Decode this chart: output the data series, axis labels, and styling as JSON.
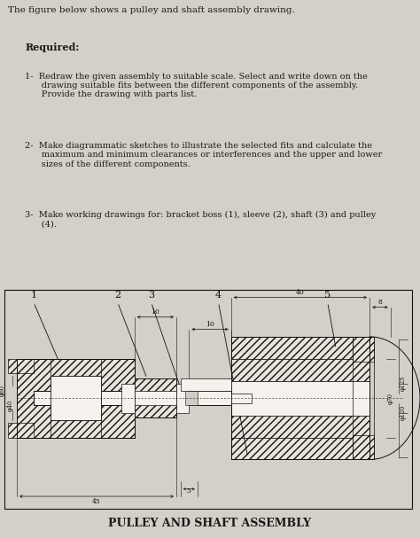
{
  "bg_color": "#d4cfc7",
  "text_color": "#1a1a1a",
  "title_text": "The figure below shows a pulley and shaft assembly drawing.",
  "required_label": "Required:",
  "item1": "1-  Redraw the given assembly to suitable scale. Select and write down on the\n      drawing suitable fits between the different components of the assembly.\n      Provide the drawing with parts list.",
  "item2": "2-  Make diagrammatic sketches to illustrate the selected fits and calculate the\n      maximum and minimum clearances or interferences and the upper and lower\n      sizes of the different components.",
  "item3": "3-  Make working drawings for: bracket boss (1), sleeve (2), shaft (3) and pulley\n      (4).",
  "footer": "PULLEY AND SHAFT ASSEMBLY"
}
